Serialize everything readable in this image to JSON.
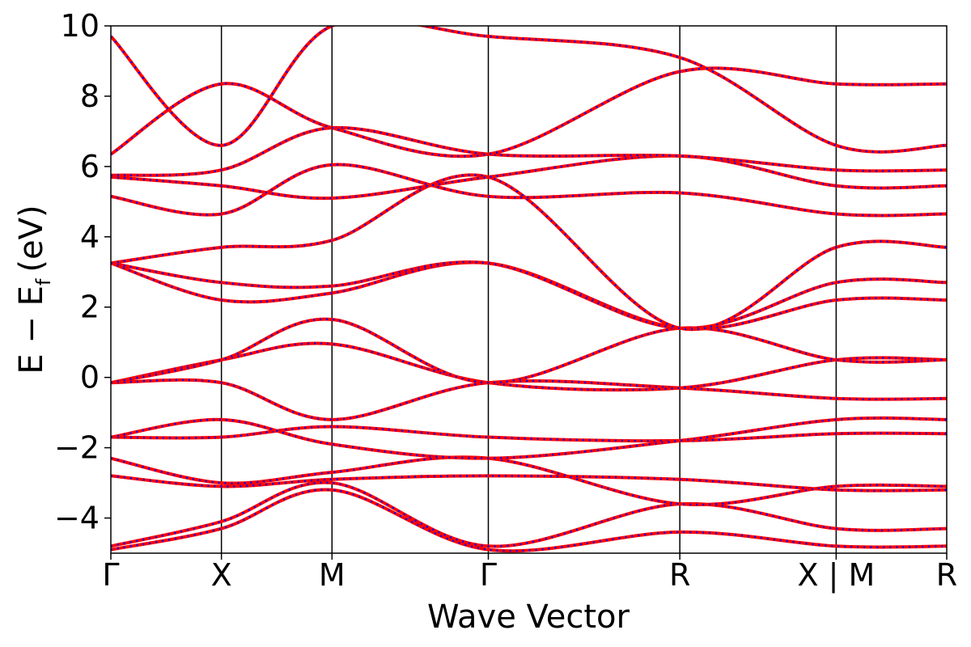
{
  "chart_data": {
    "type": "line",
    "xlabel": "Wave Vector",
    "ylabel": "E − E",
    "ylabel_subscript": "f",
    "ylabel_unit": "(eV)",
    "ylim": [
      -5,
      10
    ],
    "y_ticks": [
      -4,
      -2,
      0,
      2,
      4,
      6,
      8,
      10
    ],
    "y_tick_labels": [
      "−4",
      "−2",
      "0",
      "2",
      "4",
      "6",
      "8",
      "10"
    ],
    "x_ticks": [
      {
        "label": "Γ",
        "x": 0.0
      },
      {
        "label": "X",
        "x": 0.5
      },
      {
        "label": "M",
        "x": 1.0
      },
      {
        "label": "Γ",
        "x": 1.707
      },
      {
        "label": "R",
        "x": 2.573
      },
      {
        "label": "X | M",
        "x": 3.28
      },
      {
        "label": "R",
        "x": 3.78
      }
    ],
    "xlim": [
      0,
      3.78
    ],
    "line_styles": {
      "primary": "#ff0000",
      "overlay": "#0000ff",
      "overlay_dash": "dotted"
    },
    "series": [
      {
        "x": [
          0,
          0.5,
          1.0,
          1.707,
          2.573,
          3.28
        ],
        "y": [
          -4.9,
          -4.3,
          -3.2,
          -4.9,
          -4.4,
          -4.8
        ]
      },
      {
        "x": [
          0,
          0.5,
          1.0,
          1.707,
          2.573,
          3.28
        ],
        "y": [
          -4.8,
          -4.1,
          -3.0,
          -4.8,
          -3.6,
          -4.3
        ]
      },
      {
        "x": [
          0,
          0.5,
          1.0,
          1.707,
          2.573,
          3.28
        ],
        "y": [
          -2.8,
          -3.1,
          -2.9,
          -2.8,
          -2.9,
          -3.2
        ]
      },
      {
        "x": [
          0,
          0.5,
          1.0,
          1.707,
          2.573,
          3.28
        ],
        "y": [
          -2.3,
          -3.0,
          -2.7,
          -2.3,
          -3.6,
          -3.1
        ]
      },
      {
        "x": [
          0,
          0.5,
          1.0,
          1.707,
          2.573,
          3.28
        ],
        "y": [
          -1.7,
          -1.7,
          -1.4,
          -1.7,
          -1.8,
          -1.6
        ]
      },
      {
        "x": [
          0,
          0.5,
          1.0,
          1.707,
          2.573,
          3.28
        ],
        "y": [
          -1.7,
          -1.2,
          -1.9,
          -2.3,
          -1.8,
          -1.2
        ]
      },
      {
        "x": [
          0,
          0.5,
          1.0,
          1.707,
          2.573,
          3.28
        ],
        "y": [
          -0.15,
          -0.15,
          -1.2,
          -0.15,
          -0.3,
          -0.6
        ]
      },
      {
        "x": [
          0,
          0.5,
          1.0,
          1.707,
          2.573,
          3.28
        ],
        "y": [
          -0.15,
          0.5,
          0.95,
          -0.15,
          -0.3,
          0.5
        ]
      },
      {
        "x": [
          0,
          0.5,
          1.0,
          1.707,
          2.573,
          3.28
        ],
        "y": [
          -0.15,
          0.5,
          1.65,
          -0.15,
          1.4,
          0.5
        ]
      },
      {
        "x": [
          0,
          0.5,
          1.0,
          1.707,
          2.573,
          3.28
        ],
        "y": [
          3.25,
          2.2,
          2.4,
          3.25,
          1.4,
          2.2
        ]
      },
      {
        "x": [
          0,
          0.5,
          1.0,
          1.707,
          2.573,
          3.28
        ],
        "y": [
          3.25,
          2.7,
          2.6,
          3.25,
          1.4,
          2.7
        ]
      },
      {
        "x": [
          0,
          0.5,
          1.0,
          1.707,
          2.573,
          3.28
        ],
        "y": [
          3.25,
          3.7,
          3.9,
          5.7,
          1.4,
          3.7
        ]
      },
      {
        "x": [
          0,
          0.5,
          1.0,
          1.707,
          2.573,
          3.28
        ],
        "y": [
          5.15,
          4.65,
          6.05,
          5.15,
          5.25,
          4.65
        ]
      },
      {
        "x": [
          0,
          0.5,
          1.0,
          1.707,
          2.573,
          3.28
        ],
        "y": [
          5.7,
          5.45,
          5.1,
          5.7,
          6.3,
          5.45
        ]
      },
      {
        "x": [
          0,
          0.5,
          1.0,
          1.707,
          2.573,
          3.28
        ],
        "y": [
          5.75,
          5.9,
          7.1,
          6.35,
          6.3,
          5.9
        ]
      },
      {
        "x": [
          0,
          0.5,
          1.0,
          1.707,
          2.573,
          3.28
        ],
        "y": [
          6.35,
          8.35,
          7.1,
          6.35,
          8.7,
          8.35
        ]
      },
      {
        "x": [
          0,
          0.5,
          1.0,
          1.707,
          2.573,
          3.28
        ],
        "y": [
          9.7,
          6.6,
          10.0,
          9.7,
          9.1,
          6.6
        ]
      }
    ]
  }
}
